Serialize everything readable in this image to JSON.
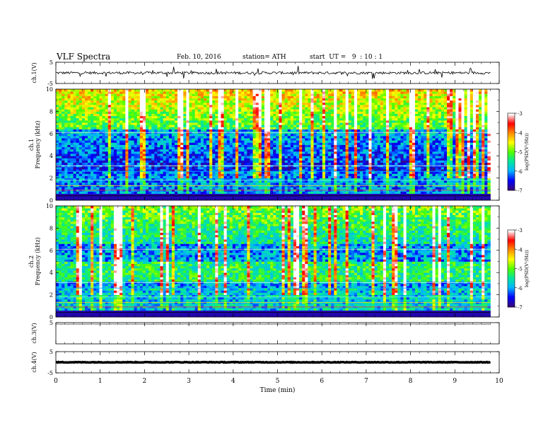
{
  "header": {
    "title": "VLF Spectra",
    "date": "Feb. 10, 2016",
    "station": "station= ATH",
    "start": "start  UT =   9  : 10 : 1"
  },
  "chart_data": {
    "type": "heatmap",
    "x_axis": {
      "label": "Time (min)",
      "range": [
        0,
        10
      ],
      "ticks": [
        "0",
        "1",
        "2",
        "3",
        "4",
        "5",
        "6",
        "7",
        "8",
        "9",
        "10"
      ],
      "data_end": 9.8
    },
    "panels": [
      {
        "id": "ch1-wave",
        "type": "line",
        "ylabel": "ch.1(V)",
        "ylim": [
          -5,
          5
        ],
        "ticks": [
          "5",
          "-5"
        ],
        "baseline": 0,
        "noise_amplitude": 0.6,
        "color": "#000000"
      },
      {
        "id": "ch1-spec",
        "type": "heatmap",
        "ylabel_channel": "ch.1",
        "ylabel": "Frequency (kHz)",
        "ylim": [
          0,
          10
        ],
        "ticks": [
          "0",
          "2",
          "4",
          "6",
          "8",
          "10"
        ],
        "colorbar_label": "log(PSD(V²/Hz))",
        "colorbar_ticks": [
          "-3",
          "-4",
          "-5",
          "-6",
          "-7"
        ],
        "colorbar_range": [
          -7,
          -3
        ]
      },
      {
        "id": "ch2-spec",
        "type": "heatmap",
        "ylabel_channel": "ch.2",
        "ylabel": "Frequency (kHz)",
        "ylim": [
          0,
          10
        ],
        "ticks": [
          "0",
          "2",
          "4",
          "6",
          "8",
          "10"
        ],
        "colorbar_label": "log(PSD(V²/Hz))",
        "colorbar_ticks": [
          "-3",
          "-4",
          "-5",
          "-6",
          "-7"
        ],
        "colorbar_range": [
          -7,
          -3
        ]
      },
      {
        "id": "ch3-wave",
        "type": "line",
        "ylabel": "ch.3(V)",
        "ylim": [
          -5,
          5
        ],
        "ticks": [
          "5"
        ],
        "baseline": 4.3,
        "noise_amplitude": 0.05,
        "color": "#555555"
      },
      {
        "id": "ch4-wave",
        "type": "line",
        "ylabel": "ch.4(V)",
        "ylim": [
          -5,
          5
        ],
        "ticks": [
          "5",
          "-5"
        ],
        "baseline": 0,
        "noise_amplitude": 0.15,
        "color": "#000000"
      }
    ],
    "colormap": [
      "#3a0a78",
      "#0000ff",
      "#00b4ff",
      "#00e6a0",
      "#50ff00",
      "#ffff00",
      "#ff8c00",
      "#ff0000",
      "#ffffff"
    ]
  }
}
